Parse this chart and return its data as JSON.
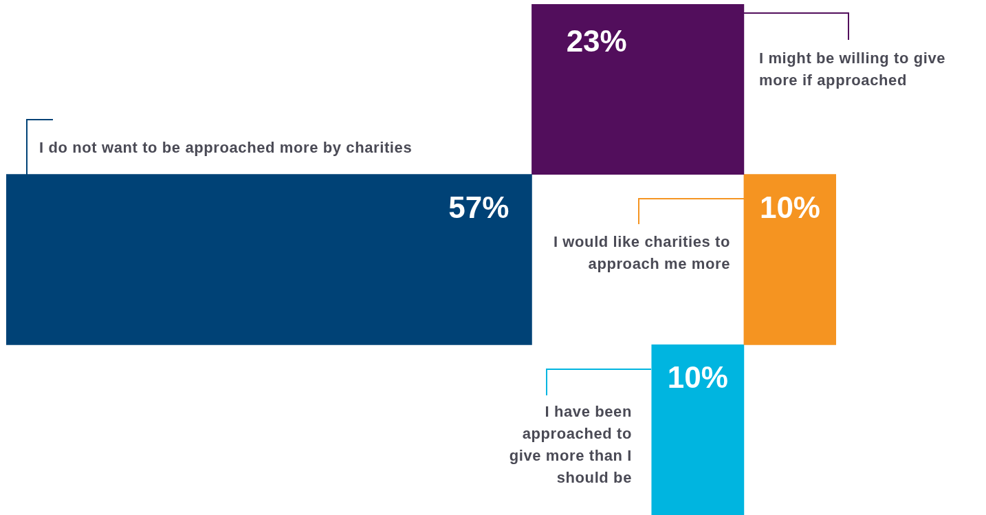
{
  "chart_data": {
    "type": "other",
    "categories": [
      "I do not want to be approached more by charities",
      "I might be willing to give more if approached",
      "I would like charities to approach me more",
      "I have been approached to give more than I should be"
    ],
    "values": [
      57,
      23,
      10,
      10
    ],
    "value_labels": [
      "57%",
      "23%",
      "10%",
      "10%"
    ],
    "colors": [
      "#004276",
      "#520e5c",
      "#f59421",
      "#00b5e0"
    ]
  }
}
